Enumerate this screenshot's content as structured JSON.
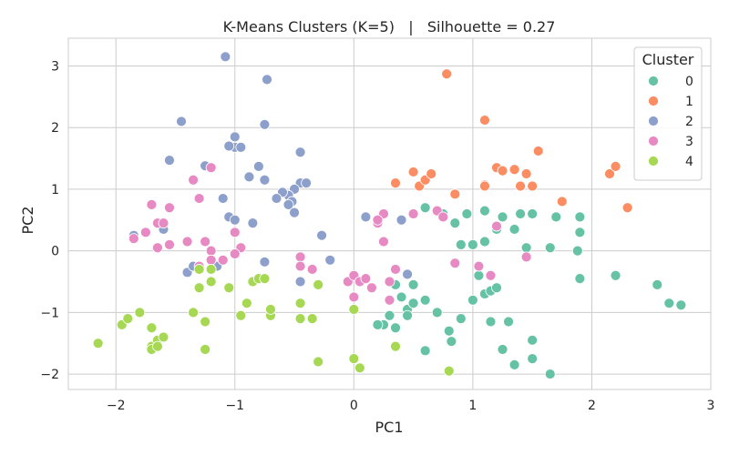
{
  "chart_data": {
    "type": "scatter",
    "title": "K-Means Clusters (K=5)   |   Silhouette = 0.27",
    "xlabel": "PC1",
    "ylabel": "PC2",
    "xlim": [
      -2.4,
      3.0
    ],
    "ylim": [
      -2.25,
      3.45
    ],
    "xticks": [
      "−2",
      "−1",
      "0",
      "1",
      "2",
      "3"
    ],
    "yticks": [
      "−2",
      "−1",
      "0",
      "1",
      "2",
      "3"
    ],
    "grid": true,
    "legend": {
      "title": "Cluster",
      "placement": "top-right"
    },
    "series": [
      {
        "name": "0",
        "color": "#66c2a5",
        "points": [
          [
            0.6,
            0.7
          ],
          [
            0.75,
            0.6
          ],
          [
            0.85,
            0.45
          ],
          [
            0.95,
            0.6
          ],
          [
            1.1,
            0.65
          ],
          [
            1.25,
            0.55
          ],
          [
            1.4,
            0.6
          ],
          [
            1.5,
            0.6
          ],
          [
            1.7,
            0.55
          ],
          [
            1.9,
            0.55
          ],
          [
            0.9,
            0.1
          ],
          [
            1.0,
            0.1
          ],
          [
            1.1,
            0.15
          ],
          [
            1.2,
            0.35
          ],
          [
            1.35,
            0.35
          ],
          [
            1.45,
            0.05
          ],
          [
            1.65,
            0.05
          ],
          [
            1.9,
            0.3
          ],
          [
            1.88,
            0.0
          ],
          [
            1.1,
            -0.7
          ],
          [
            1.15,
            -0.65
          ],
          [
            1.2,
            -0.6
          ],
          [
            1.05,
            -0.4
          ],
          [
            1.9,
            -0.45
          ],
          [
            2.2,
            -0.4
          ],
          [
            2.55,
            -0.55
          ],
          [
            2.65,
            -0.85
          ],
          [
            2.75,
            -0.88
          ],
          [
            0.35,
            -0.55
          ],
          [
            0.4,
            -0.75
          ],
          [
            0.45,
            -0.95
          ],
          [
            0.5,
            -0.55
          ],
          [
            0.5,
            -0.85
          ],
          [
            0.45,
            -1.05
          ],
          [
            0.35,
            -1.25
          ],
          [
            0.3,
            -1.05
          ],
          [
            0.25,
            -1.2
          ],
          [
            0.2,
            -1.2
          ],
          [
            0.6,
            -0.8
          ],
          [
            0.7,
            -1.0
          ],
          [
            0.9,
            -1.1
          ],
          [
            1.15,
            -1.15
          ],
          [
            1.3,
            -1.15
          ],
          [
            1.5,
            -1.45
          ],
          [
            1.25,
            -1.6
          ],
          [
            1.35,
            -1.85
          ],
          [
            1.5,
            -1.75
          ],
          [
            1.65,
            -2.0
          ],
          [
            0.82,
            -1.47
          ],
          [
            0.6,
            -1.62
          ],
          [
            1.0,
            -0.8
          ],
          [
            0.8,
            -1.3
          ]
        ]
      },
      {
        "name": "1",
        "color": "#fc8d62",
        "points": [
          [
            0.78,
            2.87
          ],
          [
            1.1,
            2.12
          ],
          [
            0.35,
            1.1
          ],
          [
            0.5,
            1.28
          ],
          [
            0.55,
            1.05
          ],
          [
            0.6,
            1.15
          ],
          [
            0.65,
            1.25
          ],
          [
            0.85,
            0.92
          ],
          [
            1.1,
            1.07
          ],
          [
            1.2,
            1.35
          ],
          [
            1.25,
            1.3
          ],
          [
            1.35,
            1.32
          ],
          [
            1.4,
            1.05
          ],
          [
            1.45,
            1.25
          ],
          [
            1.5,
            1.05
          ],
          [
            1.55,
            1.62
          ],
          [
            1.75,
            0.8
          ],
          [
            2.15,
            1.25
          ],
          [
            2.2,
            1.37
          ],
          [
            2.3,
            0.7
          ],
          [
            1.1,
            1.05
          ]
        ]
      },
      {
        "name": "2",
        "color": "#8da0cb",
        "points": [
          [
            -1.08,
            3.15
          ],
          [
            -0.73,
            2.78
          ],
          [
            -1.45,
            2.1
          ],
          [
            -0.75,
            2.05
          ],
          [
            -1.0,
            1.85
          ],
          [
            -1.0,
            1.68
          ],
          [
            -0.95,
            1.68
          ],
          [
            -1.05,
            1.7
          ],
          [
            -1.25,
            1.38
          ],
          [
            -0.8,
            1.37
          ],
          [
            -0.45,
            1.6
          ],
          [
            -1.55,
            1.47
          ],
          [
            -0.88,
            1.2
          ],
          [
            -0.75,
            1.15
          ],
          [
            -0.45,
            1.1
          ],
          [
            -0.4,
            1.1
          ],
          [
            -0.5,
            1.0
          ],
          [
            -0.55,
            0.9
          ],
          [
            -0.6,
            0.95
          ],
          [
            -0.65,
            0.85
          ],
          [
            -0.52,
            0.8
          ],
          [
            -0.55,
            0.75
          ],
          [
            -0.5,
            0.62
          ],
          [
            -1.1,
            0.85
          ],
          [
            -0.85,
            0.45
          ],
          [
            -1.05,
            0.55
          ],
          [
            -1.0,
            0.5
          ],
          [
            -0.27,
            0.25
          ],
          [
            -1.6,
            0.35
          ],
          [
            -1.4,
            -0.35
          ],
          [
            -1.85,
            0.25
          ],
          [
            -1.35,
            -0.25
          ],
          [
            -1.15,
            -0.25
          ],
          [
            -0.75,
            -0.18
          ],
          [
            -0.2,
            -0.15
          ],
          [
            -0.45,
            -0.5
          ],
          [
            0.1,
            0.55
          ],
          [
            0.4,
            0.5
          ],
          [
            0.45,
            -0.38
          ]
        ]
      },
      {
        "name": "3",
        "color": "#e78ac3",
        "points": [
          [
            -1.2,
            1.35
          ],
          [
            -1.35,
            1.15
          ],
          [
            -1.3,
            0.85
          ],
          [
            -1.7,
            0.75
          ],
          [
            -1.65,
            0.45
          ],
          [
            -1.6,
            0.45
          ],
          [
            -1.55,
            0.7
          ],
          [
            -1.75,
            0.3
          ],
          [
            -1.85,
            0.2
          ],
          [
            -1.65,
            0.05
          ],
          [
            -1.55,
            0.1
          ],
          [
            -1.4,
            0.15
          ],
          [
            -1.25,
            0.15
          ],
          [
            -1.2,
            0.0
          ],
          [
            -1.0,
            0.3
          ],
          [
            -0.95,
            0.05
          ],
          [
            -1.0,
            -0.05
          ],
          [
            -1.2,
            -0.15
          ],
          [
            -1.1,
            -0.15
          ],
          [
            -1.3,
            -0.25
          ],
          [
            -0.45,
            -0.1
          ],
          [
            -0.45,
            -0.25
          ],
          [
            -0.35,
            -0.3
          ],
          [
            -0.05,
            -0.5
          ],
          [
            0.0,
            -0.4
          ],
          [
            0.05,
            -0.5
          ],
          [
            0.1,
            -0.45
          ],
          [
            0.15,
            -0.6
          ],
          [
            0.0,
            -0.75
          ],
          [
            0.2,
            0.45
          ],
          [
            0.25,
            0.6
          ],
          [
            0.5,
            0.6
          ],
          [
            0.7,
            0.65
          ],
          [
            0.75,
            0.55
          ],
          [
            0.85,
            -0.2
          ],
          [
            1.05,
            -0.25
          ],
          [
            1.15,
            -0.4
          ],
          [
            1.2,
            0.4
          ],
          [
            1.45,
            -0.1
          ],
          [
            0.3,
            -0.5
          ],
          [
            0.3,
            -0.8
          ],
          [
            0.25,
            0.15
          ],
          [
            0.35,
            -0.3
          ],
          [
            0.2,
            0.5
          ]
        ]
      },
      {
        "name": "4",
        "color": "#a6d854",
        "points": [
          [
            -2.15,
            -1.5
          ],
          [
            -1.95,
            -1.2
          ],
          [
            -1.9,
            -1.1
          ],
          [
            -1.8,
            -1.0
          ],
          [
            -1.7,
            -1.55
          ],
          [
            -1.65,
            -1.45
          ],
          [
            -1.7,
            -1.6
          ],
          [
            -1.6,
            -1.4
          ],
          [
            -1.65,
            -1.55
          ],
          [
            -1.7,
            -1.25
          ],
          [
            -1.35,
            -1.0
          ],
          [
            -1.25,
            -1.15
          ],
          [
            -1.25,
            -1.6
          ],
          [
            -1.3,
            -0.6
          ],
          [
            -1.2,
            -0.3
          ],
          [
            -1.2,
            -0.5
          ],
          [
            -1.3,
            -0.3
          ],
          [
            -1.05,
            -0.6
          ],
          [
            -0.95,
            -1.05
          ],
          [
            -0.85,
            -0.5
          ],
          [
            -0.8,
            -0.45
          ],
          [
            -0.9,
            -0.85
          ],
          [
            -0.75,
            -0.45
          ],
          [
            -0.7,
            -1.05
          ],
          [
            -0.7,
            -0.95
          ],
          [
            -0.45,
            -1.1
          ],
          [
            -0.45,
            -0.85
          ],
          [
            -0.35,
            -1.1
          ],
          [
            -0.3,
            -1.8
          ],
          [
            -0.3,
            -0.55
          ],
          [
            0.0,
            -1.75
          ],
          [
            0.05,
            -1.9
          ],
          [
            0.35,
            -1.55
          ],
          [
            0.8,
            -1.95
          ],
          [
            0.0,
            -0.95
          ]
        ]
      }
    ]
  }
}
